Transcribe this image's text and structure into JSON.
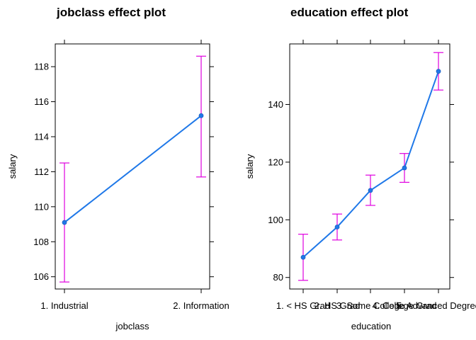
{
  "chart_data": [
    {
      "type": "line",
      "title": "jobclass effect plot",
      "xlabel": "jobclass",
      "ylabel": "salary",
      "categories": [
        "1. Industrial",
        "2. Information"
      ],
      "values": [
        109.1,
        115.2
      ],
      "lower": [
        105.7,
        111.7
      ],
      "upper": [
        112.5,
        118.6
      ],
      "ylim": [
        105.3,
        119.3
      ],
      "yticks": [
        106,
        108,
        110,
        112,
        114,
        116,
        118
      ],
      "colors": {
        "line": "#1f78e8",
        "ci": "#e000e0"
      },
      "grid": false
    },
    {
      "type": "line",
      "title": "education effect plot",
      "xlabel": "education",
      "ylabel": "salary",
      "categories": [
        "1. < HS Grad",
        "2. HS Grad",
        "3. Some College",
        "4. College Grad",
        "5. Advanced Degree"
      ],
      "values": [
        87.0,
        97.5,
        110.2,
        118.0,
        151.5
      ],
      "lower": [
        79.0,
        93.0,
        105.0,
        113.0,
        145.0
      ],
      "upper": [
        95.0,
        102.0,
        115.5,
        123.0,
        158.0
      ],
      "ylim": [
        76,
        161
      ],
      "yticks": [
        80,
        100,
        120,
        140
      ],
      "colors": {
        "line": "#1f78e8",
        "ci": "#e000e0"
      },
      "grid": false
    }
  ]
}
